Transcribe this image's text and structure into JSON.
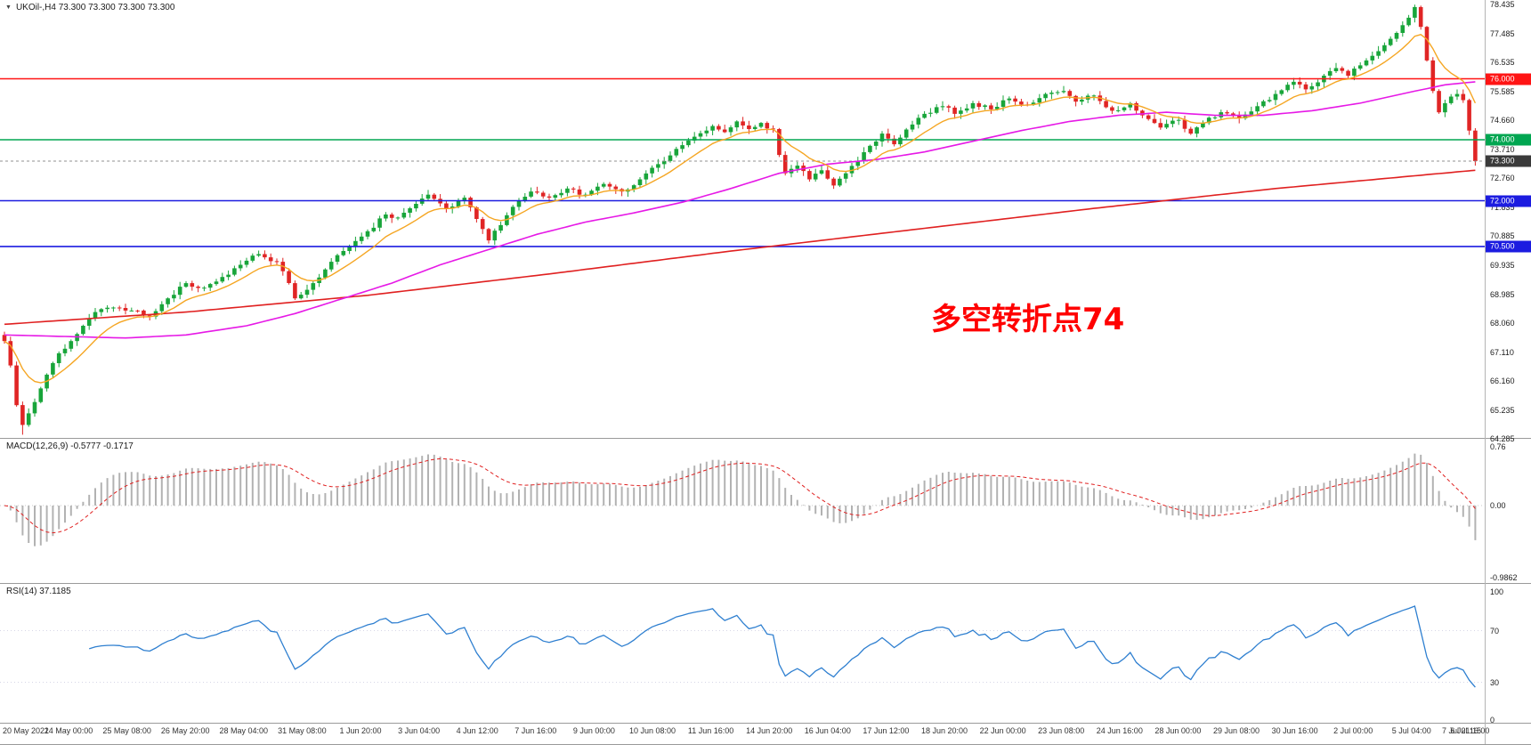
{
  "symbol": {
    "title": "UKOil-,H4 73.300 73.300 73.300 73.300",
    "marker": "▼"
  },
  "annotation": {
    "text": "多空转折点74",
    "color": "#ff0000"
  },
  "price_axis": {
    "labels": [
      "78.435",
      "77.485",
      "76.535",
      "75.585",
      "74.660",
      "73.710",
      "72.760",
      "71.835",
      "70.885",
      "69.935",
      "68.985",
      "68.060",
      "67.110",
      "66.160",
      "65.235",
      "64.285"
    ]
  },
  "indicators": {
    "macd": {
      "label": "MACD(12,26,9) -0.5777 -0.1717",
      "scale": [
        "0.76",
        "0.00",
        "-0.9862"
      ],
      "values": {
        "macd": -0.5777,
        "signal": -0.1717
      }
    },
    "rsi": {
      "label": "RSI(14) 37.1185",
      "scale": [
        "100",
        "70",
        "30",
        "0"
      ],
      "value": 37.1185
    }
  },
  "time_axis": [
    "20 May 2021",
    "24 May 00:00",
    "25 May 08:00",
    "26 May 20:00",
    "28 May 04:00",
    "31 May 08:00",
    "1 Jun 20:00",
    "3 Jun 04:00",
    "4 Jun 12:00",
    "7 Jun 16:00",
    "9 Jun 00:00",
    "10 Jun 08:00",
    "11 Jun 16:00",
    "14 Jun 20:00",
    "16 Jun 04:00",
    "17 Jun 12:00",
    "18 Jun 20:00",
    "22 Jun 00:00",
    "23 Jun 08:00",
    "24 Jun 16:00",
    "28 Jun 00:00",
    "29 Jun 08:00",
    "30 Jun 16:00",
    "2 Jul 00:00",
    "5 Jul 04:00",
    "6 Jul 16:00",
    "7 Jul 21:15"
  ],
  "chart_data": {
    "type": "candlestick",
    "symbol": "UKOil-",
    "timeframe": "H4",
    "last_price": 73.3,
    "price_range": [
      64.285,
      78.435
    ],
    "grid_step": 0.95,
    "candle_count": 244,
    "seed": 11,
    "colors": {
      "up": "#18a53a",
      "down": "#e02525"
    },
    "close_anchors": [
      [
        0,
        67.4
      ],
      [
        1,
        66.6
      ],
      [
        2,
        65.3
      ],
      [
        3,
        64.65
      ],
      [
        5,
        65.4
      ],
      [
        7,
        66.3
      ],
      [
        9,
        67.0
      ],
      [
        11,
        67.4
      ],
      [
        13,
        67.9
      ],
      [
        15,
        68.35
      ],
      [
        18,
        68.5
      ],
      [
        21,
        68.4
      ],
      [
        24,
        68.2
      ],
      [
        27,
        68.8
      ],
      [
        30,
        69.3
      ],
      [
        33,
        69.15
      ],
      [
        36,
        69.5
      ],
      [
        39,
        69.9
      ],
      [
        42,
        70.25
      ],
      [
        45,
        70.0
      ],
      [
        47,
        69.3
      ],
      [
        48,
        68.8
      ],
      [
        51,
        69.3
      ],
      [
        54,
        70.0
      ],
      [
        57,
        70.5
      ],
      [
        60,
        71.0
      ],
      [
        63,
        71.55
      ],
      [
        65,
        71.45
      ],
      [
        68,
        71.9
      ],
      [
        70,
        72.2
      ],
      [
        73,
        71.75
      ],
      [
        76,
        72.1
      ],
      [
        78,
        71.4
      ],
      [
        80,
        70.7
      ],
      [
        82,
        71.2
      ],
      [
        84,
        71.8
      ],
      [
        87,
        72.3
      ],
      [
        90,
        72.1
      ],
      [
        93,
        72.4
      ],
      [
        96,
        72.2
      ],
      [
        99,
        72.55
      ],
      [
        102,
        72.3
      ],
      [
        105,
        72.7
      ],
      [
        108,
        73.2
      ],
      [
        111,
        73.7
      ],
      [
        114,
        74.1
      ],
      [
        117,
        74.45
      ],
      [
        119,
        74.25
      ],
      [
        121,
        74.6
      ],
      [
        123,
        74.35
      ],
      [
        125,
        74.55
      ],
      [
        127,
        74.35
      ],
      [
        128,
        73.5
      ],
      [
        129,
        72.9
      ],
      [
        131,
        73.15
      ],
      [
        133,
        72.7
      ],
      [
        135,
        73.0
      ],
      [
        137,
        72.5
      ],
      [
        139,
        72.9
      ],
      [
        141,
        73.3
      ],
      [
        143,
        73.8
      ],
      [
        145,
        74.2
      ],
      [
        147,
        73.85
      ],
      [
        150,
        74.5
      ],
      [
        152,
        74.85
      ],
      [
        155,
        75.1
      ],
      [
        157,
        74.85
      ],
      [
        160,
        75.2
      ],
      [
        163,
        75.0
      ],
      [
        166,
        75.35
      ],
      [
        169,
        75.15
      ],
      [
        172,
        75.5
      ],
      [
        175,
        75.6
      ],
      [
        177,
        75.25
      ],
      [
        180,
        75.45
      ],
      [
        183,
        74.95
      ],
      [
        186,
        75.2
      ],
      [
        188,
        74.8
      ],
      [
        191,
        74.4
      ],
      [
        194,
        74.65
      ],
      [
        196,
        74.2
      ],
      [
        198,
        74.55
      ],
      [
        201,
        74.9
      ],
      [
        204,
        74.7
      ],
      [
        207,
        75.1
      ],
      [
        210,
        75.5
      ],
      [
        213,
        75.9
      ],
      [
        215,
        75.65
      ],
      [
        218,
        76.1
      ],
      [
        220,
        76.35
      ],
      [
        222,
        76.1
      ],
      [
        225,
        76.6
      ],
      [
        228,
        77.1
      ],
      [
        230,
        77.5
      ],
      [
        232,
        78.0
      ],
      [
        233,
        78.35
      ],
      [
        234,
        77.7
      ],
      [
        235,
        76.6
      ],
      [
        236,
        75.6
      ],
      [
        237,
        74.9
      ],
      [
        238,
        75.2
      ],
      [
        240,
        75.5
      ],
      [
        241,
        75.3
      ],
      [
        242,
        74.3
      ],
      [
        243,
        73.3
      ]
    ],
    "ma_fast": {
      "name": "fast-ma",
      "type": "ema",
      "period": 10,
      "color": "#f5a623"
    },
    "ma_mid": {
      "name": "mid-ma",
      "color": "#e619e6",
      "anchors": [
        [
          0,
          67.6
        ],
        [
          10,
          67.55
        ],
        [
          20,
          67.5
        ],
        [
          30,
          67.6
        ],
        [
          40,
          67.9
        ],
        [
          48,
          68.3
        ],
        [
          56,
          68.8
        ],
        [
          64,
          69.3
        ],
        [
          72,
          69.9
        ],
        [
          80,
          70.4
        ],
        [
          88,
          70.9
        ],
        [
          96,
          71.3
        ],
        [
          104,
          71.6
        ],
        [
          112,
          71.95
        ],
        [
          120,
          72.4
        ],
        [
          128,
          72.9
        ],
        [
          136,
          73.2
        ],
        [
          144,
          73.35
        ],
        [
          152,
          73.6
        ],
        [
          160,
          73.95
        ],
        [
          168,
          74.3
        ],
        [
          176,
          74.6
        ],
        [
          184,
          74.8
        ],
        [
          192,
          74.9
        ],
        [
          200,
          74.8
        ],
        [
          208,
          74.8
        ],
        [
          216,
          74.95
        ],
        [
          224,
          75.2
        ],
        [
          232,
          75.55
        ],
        [
          238,
          75.8
        ],
        [
          243,
          75.9
        ]
      ]
    },
    "ma_slow": {
      "name": "slow-ma",
      "color": "#e02020",
      "anchors": [
        [
          0,
          67.95
        ],
        [
          30,
          68.35
        ],
        [
          60,
          68.9
        ],
        [
          90,
          69.6
        ],
        [
          120,
          70.35
        ],
        [
          150,
          71.05
        ],
        [
          180,
          71.75
        ],
        [
          210,
          72.4
        ],
        [
          243,
          73.0
        ]
      ]
    },
    "levels": [
      {
        "price": 76.0,
        "label": "76.000",
        "color": "#ff1414"
      },
      {
        "price": 74.0,
        "label": "74.000",
        "color": "#00a651"
      },
      {
        "price": 73.3,
        "label": "73.300",
        "color": "#909090",
        "badge": "#3a3a3a",
        "dash": true
      },
      {
        "price": 72.0,
        "label": "72.000",
        "color": "#1c1ce0"
      },
      {
        "price": 70.5,
        "label": "70.500",
        "color": "#1c1ce0"
      }
    ],
    "macd": {
      "fast": 12,
      "slow": 26,
      "signal": 9,
      "histogram_color": "#b2b2b2",
      "signal_color": "#e02020",
      "range": [
        -0.9862,
        0.76
      ]
    },
    "rsi": {
      "period": 14,
      "color": "#2e7fd0",
      "levels": [
        70,
        30
      ],
      "range": [
        0,
        100
      ]
    }
  }
}
